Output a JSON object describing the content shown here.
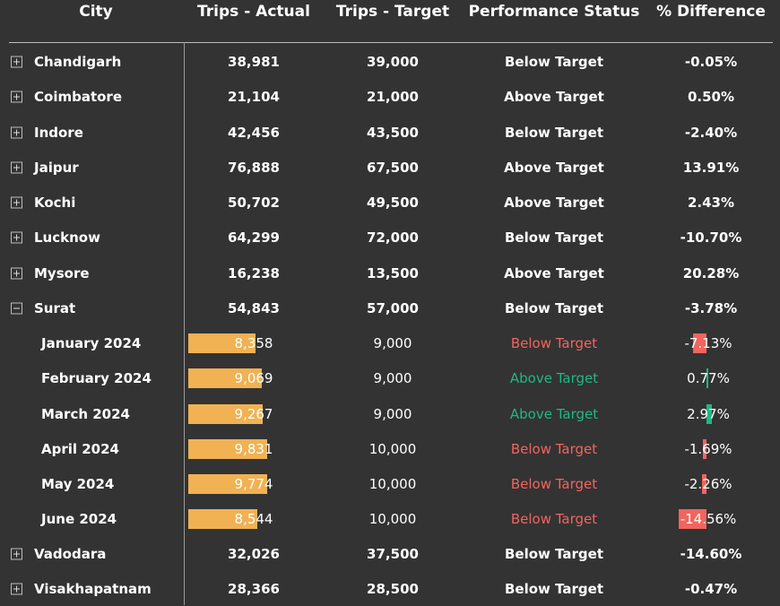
{
  "headers": {
    "city": "City",
    "actual": "Trips - Actual",
    "target": "Trips - Target",
    "status": "Performance Status",
    "diff": "% Difference"
  },
  "colors": {
    "background": "#333333",
    "bar": "#f0b252",
    "below": "#f2645e",
    "above": "#1fb885",
    "text": "#ffffff"
  },
  "rows": [
    {
      "name": "Chandigarh",
      "actual": "38,981",
      "target": "39,000",
      "status": "Below Target",
      "diff": "-0.05%",
      "expanded": false
    },
    {
      "name": "Coimbatore",
      "actual": "21,104",
      "target": "21,000",
      "status": "Above Target",
      "diff": "0.50%",
      "expanded": false
    },
    {
      "name": "Indore",
      "actual": "42,456",
      "target": "43,500",
      "status": "Below Target",
      "diff": "-2.40%",
      "expanded": false
    },
    {
      "name": "Jaipur",
      "actual": "76,888",
      "target": "67,500",
      "status": "Above Target",
      "diff": "13.91%",
      "expanded": false
    },
    {
      "name": "Kochi",
      "actual": "50,702",
      "target": "49,500",
      "status": "Above Target",
      "diff": "2.43%",
      "expanded": false
    },
    {
      "name": "Lucknow",
      "actual": "64,299",
      "target": "72,000",
      "status": "Below Target",
      "diff": "-10.70%",
      "expanded": false
    },
    {
      "name": "Mysore",
      "actual": "16,238",
      "target": "13,500",
      "status": "Above Target",
      "diff": "20.28%",
      "expanded": false
    },
    {
      "name": "Surat",
      "actual": "54,843",
      "target": "57,000",
      "status": "Below Target",
      "diff": "-3.78%",
      "expanded": true,
      "children": [
        {
          "name": "January 2024",
          "actual": "8,358",
          "actual_value": 8358,
          "target": "9,000",
          "status": "Below Target",
          "diff": "-7.13%",
          "diff_value": -7.13
        },
        {
          "name": "February 2024",
          "actual": "9,069",
          "actual_value": 9069,
          "target": "9,000",
          "status": "Above Target",
          "diff": "0.77%",
          "diff_value": 0.77
        },
        {
          "name": "March 2024",
          "actual": "9,267",
          "actual_value": 9267,
          "target": "9,000",
          "status": "Above Target",
          "diff": "2.97%",
          "diff_value": 2.97
        },
        {
          "name": "April 2024",
          "actual": "9,831",
          "actual_value": 9831,
          "target": "10,000",
          "status": "Below Target",
          "diff": "-1.69%",
          "diff_value": -1.69
        },
        {
          "name": "May 2024",
          "actual": "9,774",
          "actual_value": 9774,
          "target": "10,000",
          "status": "Below Target",
          "diff": "-2.26%",
          "diff_value": -2.26
        },
        {
          "name": "June 2024",
          "actual": "8,544",
          "actual_value": 8544,
          "target": "10,000",
          "status": "Below Target",
          "diff": "-14.56%",
          "diff_value": -14.56
        }
      ]
    },
    {
      "name": "Vadodara",
      "actual": "32,026",
      "target": "37,500",
      "status": "Below Target",
      "diff": "-14.60%",
      "expanded": false
    },
    {
      "name": "Visakhapatnam",
      "actual": "28,366",
      "target": "28,500",
      "status": "Below Target",
      "diff": "-0.47%",
      "expanded": false
    }
  ]
}
